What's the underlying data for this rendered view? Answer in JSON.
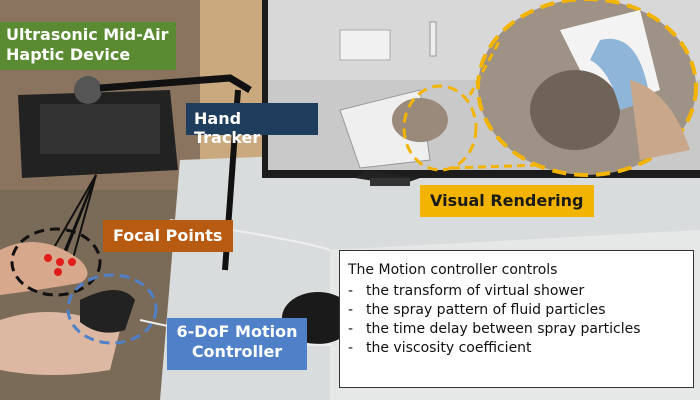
{
  "labels": {
    "device_line1": "Ultrasonic Mid-Air",
    "device_line2": "Haptic Device",
    "hand_tracker": "Hand Tracker",
    "focal_points": "Focal Points",
    "visual_rendering": "Visual Rendering",
    "motion_controller_line1": "6-DoF Motion",
    "motion_controller_line2": "Controller"
  },
  "infobox": {
    "title": "The Motion controller controls",
    "items": [
      "the transform of virtual shower",
      "the spray pattern of fluid particles",
      "the time delay between spray particles",
      "the viscosity coefficient"
    ]
  },
  "colors": {
    "device_label": "#5a8a32",
    "hand_tracker_label": "#1f3d5c",
    "focal_points_label": "#b85b12",
    "visual_rendering_label": "#f2b400",
    "motion_controller_label": "#4f80c8"
  }
}
